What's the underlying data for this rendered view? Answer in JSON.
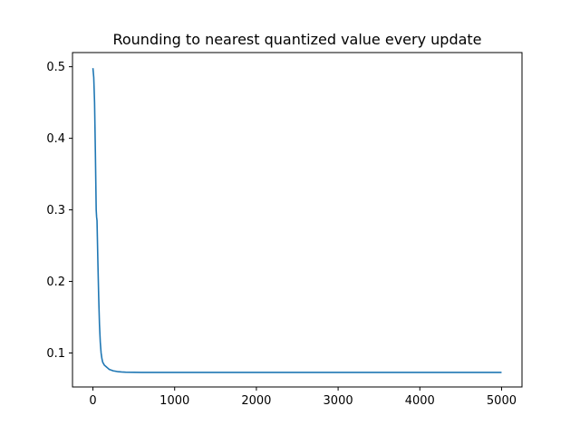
{
  "chart_data": {
    "type": "line",
    "title": "Rounding to nearest quantized value every update",
    "xlabel": "",
    "ylabel": "",
    "xlim": [
      -250,
      5250
    ],
    "ylim": [
      0.0525,
      0.5198
    ],
    "grid": false,
    "legend": "none",
    "x_ticks": [
      0,
      1000,
      2000,
      3000,
      4000,
      5000
    ],
    "x_tick_labels": [
      "0",
      "1000",
      "2000",
      "3000",
      "4000",
      "5000"
    ],
    "y_ticks": [
      0.1,
      0.2,
      0.3,
      0.4,
      0.5
    ],
    "y_tick_labels": [
      "0.1",
      "0.2",
      "0.3",
      "0.4",
      "0.5"
    ],
    "series": [
      {
        "color": "#1f77b4",
        "x": [
          0,
          10,
          20,
          30,
          40,
          45,
          50,
          60,
          70,
          80,
          90,
          100,
          110,
          120,
          140,
          160,
          180,
          200,
          250,
          300,
          350,
          400,
          500,
          600,
          800,
          1000,
          1500,
          2000,
          3000,
          4000,
          5000
        ],
        "y": [
          0.498,
          0.485,
          0.45,
          0.38,
          0.3,
          0.29,
          0.285,
          0.23,
          0.18,
          0.14,
          0.115,
          0.1,
          0.092,
          0.087,
          0.083,
          0.081,
          0.079,
          0.077,
          0.075,
          0.074,
          0.0735,
          0.0732,
          0.073,
          0.0729,
          0.0728,
          0.0728,
          0.0728,
          0.0728,
          0.0728,
          0.0728,
          0.0728
        ]
      }
    ]
  }
}
